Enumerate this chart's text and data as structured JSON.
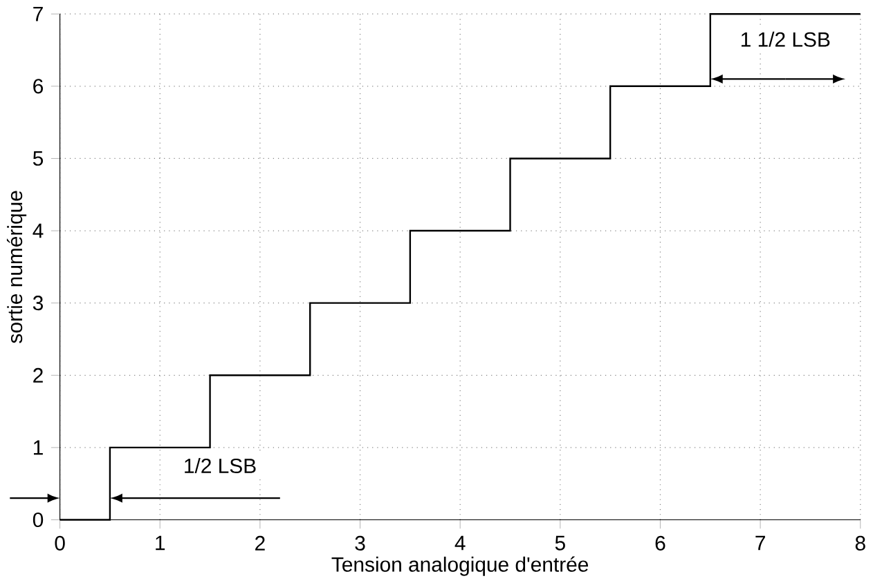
{
  "chart_data": {
    "type": "step",
    "xlabel": "Tension analogique d'entrée",
    "ylabel": "sortie numérique",
    "x": [
      0,
      0.5,
      1.5,
      2.5,
      3.5,
      4.5,
      5.5,
      6.5,
      8
    ],
    "values": [
      0,
      1,
      2,
      3,
      4,
      5,
      6,
      7,
      7
    ],
    "color": "#000000",
    "marker": "none",
    "line_style": "solid",
    "grid": true,
    "xlim": [
      0,
      8
    ],
    "ylim": [
      0,
      7
    ],
    "xticks": [
      0,
      1,
      2,
      3,
      4,
      5,
      6,
      7,
      8
    ],
    "yticks": [
      0,
      1,
      2,
      3,
      4,
      5,
      6,
      7
    ],
    "annotations": [
      "1/2 LSB",
      "1 1/2 LSB"
    ]
  }
}
